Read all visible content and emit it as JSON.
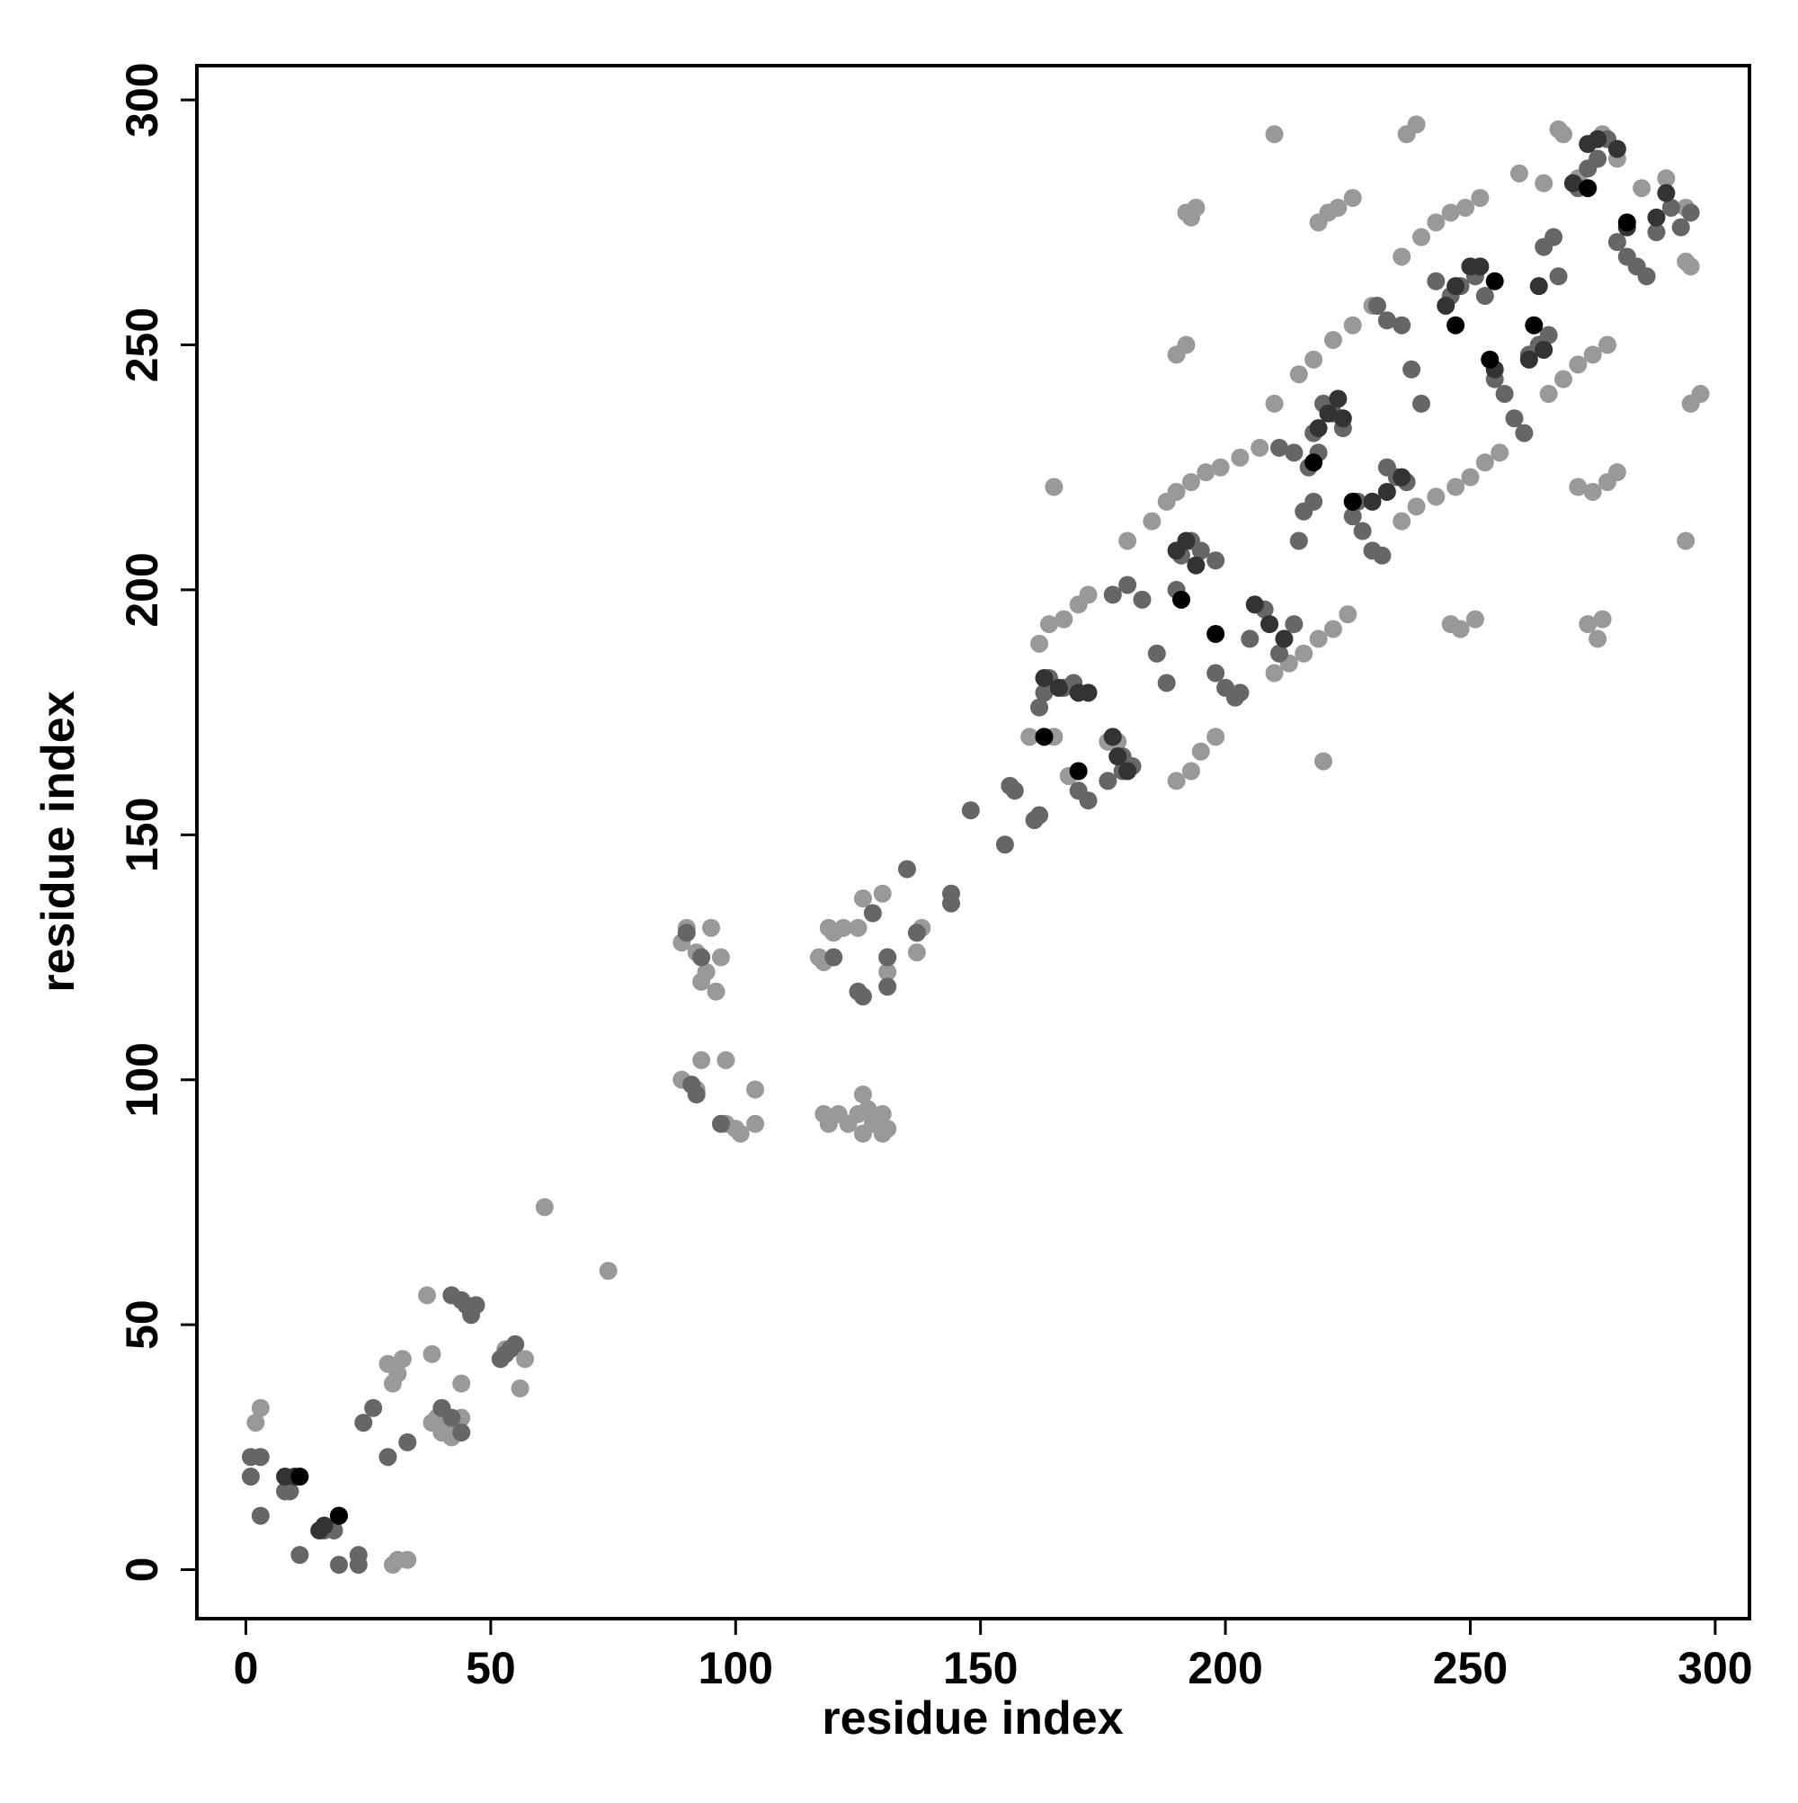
{
  "chart_data": {
    "type": "scatter",
    "xlabel": "residue index",
    "ylabel": "residue index",
    "xlim": [
      -10,
      307
    ],
    "ylim": [
      -10,
      307
    ],
    "xticks": [
      0,
      50,
      100,
      150,
      200,
      250,
      300
    ],
    "yticks": [
      0,
      50,
      100,
      150,
      200,
      250,
      300
    ],
    "series": [
      {
        "color": "#999999",
        "x": [
          2,
          3,
          30,
          31,
          33,
          31,
          29,
          30,
          32,
          38,
          38,
          40,
          42,
          44,
          41,
          39,
          37,
          44,
          56,
          61,
          74,
          53,
          57,
          55,
          89,
          90,
          92,
          93,
          94,
          95,
          96,
          97,
          93,
          98,
          89,
          92,
          100,
          104,
          104,
          101,
          98,
          117,
          118,
          119,
          120,
          122,
          125,
          126,
          130,
          131,
          131,
          137,
          138,
          118,
          119,
          121,
          123,
          125,
          126,
          128,
          130,
          131,
          130,
          126,
          127,
          162,
          164,
          167,
          170,
          172,
          160,
          165,
          168,
          176,
          178,
          190,
          193,
          195,
          198,
          180,
          185,
          188,
          190,
          193,
          196,
          199,
          203,
          207,
          210,
          215,
          218,
          222,
          226,
          230,
          210,
          213,
          216,
          219,
          222,
          225,
          236,
          239,
          243,
          247,
          250,
          253,
          256,
          236,
          240,
          243,
          246,
          249,
          252,
          266,
          269,
          272,
          275,
          278,
          192,
          193,
          194,
          219,
          221,
          223,
          226,
          190,
          192,
          165,
          210,
          237,
          239,
          246,
          248,
          251,
          274,
          276,
          277,
          272,
          275,
          278,
          280,
          295,
          297,
          294,
          220,
          295,
          294,
          268,
          269,
          272,
          280,
          285,
          290,
          294,
          277,
          260,
          265
        ],
        "values": [
          30,
          33,
          1,
          2,
          2,
          40,
          42,
          38,
          43,
          44,
          30,
          28,
          27,
          31,
          30,
          31,
          56,
          38,
          37,
          74,
          61,
          45,
          43,
          46,
          128,
          131,
          126,
          120,
          122,
          131,
          118,
          125,
          104,
          104,
          100,
          98,
          90,
          98,
          91,
          89,
          91,
          125,
          124,
          131,
          130,
          131,
          131,
          137,
          138,
          122,
          125,
          126,
          131,
          93,
          91,
          93,
          91,
          93,
          89,
          91,
          93,
          90,
          89,
          97,
          94,
          189,
          193,
          194,
          197,
          199,
          170,
          170,
          162,
          169,
          169,
          161,
          163,
          167,
          170,
          210,
          214,
          218,
          220,
          222,
          224,
          225,
          227,
          229,
          238,
          244,
          247,
          251,
          254,
          258,
          183,
          185,
          187,
          190,
          192,
          195,
          214,
          217,
          219,
          221,
          223,
          226,
          228,
          268,
          272,
          275,
          277,
          278,
          280,
          240,
          243,
          246,
          248,
          250,
          277,
          276,
          278,
          275,
          277,
          278,
          280,
          248,
          250,
          221,
          293,
          293,
          295,
          193,
          192,
          194,
          193,
          190,
          194,
          221,
          220,
          222,
          224,
          238,
          240,
          210,
          165,
          266,
          267,
          294,
          293,
          284,
          288,
          282,
          284,
          278,
          293,
          285,
          283
        ]
      },
      {
        "color": "#666666",
        "x": [
          1,
          1,
          3,
          3,
          8,
          9,
          11,
          16,
          18,
          19,
          23,
          23,
          24,
          29,
          33,
          26,
          45,
          44,
          46,
          47,
          42,
          53,
          54,
          55,
          52,
          44,
          40,
          42,
          90,
          93,
          91,
          92,
          97,
          120,
          125,
          126,
          128,
          131,
          131,
          135,
          137,
          144,
          144,
          148,
          155,
          157,
          156,
          162,
          161,
          162,
          163,
          164,
          167,
          169,
          170,
          172,
          176,
          179,
          181,
          179,
          177,
          180,
          183,
          186,
          188,
          190,
          191,
          193,
          195,
          198,
          198,
          200,
          202,
          203,
          205,
          208,
          209,
          211,
          214,
          211,
          214,
          217,
          219,
          216,
          218,
          215,
          218,
          220,
          222,
          224,
          226,
          228,
          230,
          232,
          227,
          233,
          235,
          237,
          231,
          233,
          236,
          238,
          240,
          243,
          246,
          248,
          251,
          253,
          255,
          257,
          259,
          261,
          262,
          264,
          266,
          265,
          267,
          268,
          272,
          274,
          276,
          278,
          280,
          282,
          284,
          286,
          288,
          291,
          293,
          295
        ],
        "values": [
          19,
          23,
          23,
          11,
          16,
          16,
          3,
          8,
          8,
          1,
          1,
          3,
          30,
          23,
          26,
          33,
          54,
          55,
          52,
          54,
          56,
          44,
          45,
          46,
          43,
          28,
          33,
          31,
          130,
          125,
          99,
          97,
          91,
          125,
          118,
          117,
          134,
          119,
          125,
          143,
          130,
          138,
          136,
          155,
          148,
          159,
          160,
          154,
          153,
          176,
          179,
          182,
          180,
          181,
          159,
          157,
          161,
          163,
          164,
          166,
          199,
          201,
          198,
          187,
          181,
          200,
          207,
          210,
          208,
          206,
          183,
          180,
          178,
          179,
          190,
          196,
          193,
          187,
          193,
          229,
          228,
          225,
          228,
          216,
          218,
          210,
          232,
          238,
          236,
          233,
          215,
          212,
          208,
          207,
          218,
          225,
          223,
          222,
          258,
          255,
          254,
          245,
          238,
          263,
          260,
          262,
          264,
          260,
          243,
          240,
          235,
          232,
          248,
          250,
          252,
          270,
          272,
          264,
          282,
          286,
          288,
          292,
          271,
          268,
          266,
          264,
          273,
          278,
          274,
          277
        ]
      },
      {
        "color": "#333333",
        "x": [
          8,
          10,
          15,
          19,
          16,
          163,
          166,
          170,
          172,
          177,
          178,
          180,
          190,
          192,
          194,
          206,
          209,
          212,
          219,
          221,
          223,
          224,
          230,
          233,
          236,
          245,
          247,
          250,
          252,
          255,
          262,
          265,
          264,
          271,
          274,
          276,
          280,
          282,
          288,
          290
        ],
        "values": [
          19,
          19,
          8,
          11,
          9,
          182,
          180,
          179,
          179,
          170,
          166,
          163,
          208,
          210,
          205,
          197,
          193,
          190,
          233,
          236,
          239,
          235,
          218,
          220,
          223,
          258,
          262,
          266,
          266,
          245,
          247,
          249,
          262,
          283,
          291,
          292,
          290,
          274,
          276,
          281
        ]
      },
      {
        "color": "#000000",
        "x": [
          11,
          19,
          163,
          170,
          191,
          198,
          218,
          226,
          247,
          254,
          255,
          263,
          274,
          282
        ],
        "values": [
          19,
          11,
          170,
          163,
          198,
          191,
          226,
          218,
          254,
          247,
          263,
          254,
          282,
          275
        ]
      }
    ]
  }
}
